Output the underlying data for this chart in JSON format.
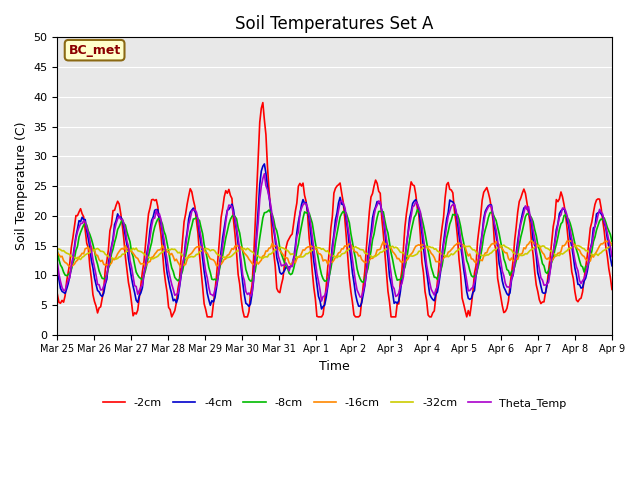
{
  "title": "Soil Temperatures Set A",
  "xlabel": "Time",
  "ylabel": "Soil Temperature (C)",
  "ylim": [
    0,
    50
  ],
  "bg_color": "#e8e8e8",
  "fig_bg": "#ffffff",
  "annotation": "BC_met",
  "legend_labels": [
    "-2cm",
    "-4cm",
    "-8cm",
    "-16cm",
    "-32cm",
    "Theta_Temp"
  ],
  "line_colors": [
    "#ff0000",
    "#0000cc",
    "#00bb00",
    "#ff8800",
    "#cccc00",
    "#aa00cc"
  ],
  "tick_dates": [
    "Mar 25",
    "Mar 26",
    "Mar 27",
    "Mar 28",
    "Mar 29",
    "Mar 30",
    "Mar 31",
    "Apr 1",
    "Apr 2",
    "Apr 3",
    "Apr 4",
    "Apr 5",
    "Apr 6",
    "Apr 7",
    "Apr 8",
    "Apr 9"
  ],
  "n_days": 15,
  "points_per_day": 24
}
